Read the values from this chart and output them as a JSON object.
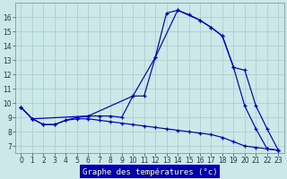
{
  "xlabel": "Graphe des températures (°c)",
  "background_color": "#cce8e8",
  "grid_color": "#aacece",
  "line_color": "#0000bb",
  "label_bg": "#0000aa",
  "xlim": [
    -0.5,
    23.5
  ],
  "ylim": [
    6.5,
    17.0
  ],
  "yticks": [
    7,
    8,
    9,
    10,
    11,
    12,
    13,
    14,
    15,
    16
  ],
  "xticks": [
    0,
    1,
    2,
    3,
    4,
    5,
    6,
    7,
    8,
    9,
    10,
    11,
    12,
    13,
    14,
    15,
    16,
    17,
    18,
    19,
    20,
    21,
    22,
    23
  ],
  "line1_x": [
    0,
    1,
    2,
    3,
    4,
    5,
    6,
    7,
    8,
    9,
    10,
    11,
    12,
    13,
    14,
    15,
    16,
    17,
    18,
    19,
    20,
    21,
    22,
    23
  ],
  "line1_y": [
    9.7,
    8.9,
    8.5,
    8.5,
    8.8,
    9.0,
    9.1,
    9.1,
    9.1,
    9.0,
    10.5,
    10.5,
    13.2,
    16.3,
    16.5,
    16.2,
    15.8,
    15.3,
    14.7,
    12.5,
    9.8,
    8.2,
    6.8,
    6.7
  ],
  "line2_x": [
    0,
    1,
    6,
    10,
    12,
    14,
    16,
    17,
    18,
    19,
    20,
    21,
    22,
    23
  ],
  "line2_y": [
    9.7,
    8.9,
    9.1,
    10.5,
    13.2,
    16.5,
    15.8,
    15.3,
    14.7,
    12.5,
    12.3,
    9.8,
    8.2,
    6.7
  ],
  "line3_x": [
    0,
    1,
    2,
    3,
    4,
    5,
    6,
    7,
    8,
    9,
    10,
    11,
    12,
    13,
    14,
    15,
    16,
    17,
    18,
    19,
    20,
    21,
    22,
    23
  ],
  "line3_y": [
    9.7,
    8.9,
    8.5,
    8.5,
    8.8,
    8.9,
    8.9,
    8.8,
    8.7,
    8.6,
    8.5,
    8.4,
    8.3,
    8.2,
    8.1,
    8.0,
    7.9,
    7.8,
    7.6,
    7.3,
    7.0,
    6.9,
    6.8,
    6.7
  ]
}
